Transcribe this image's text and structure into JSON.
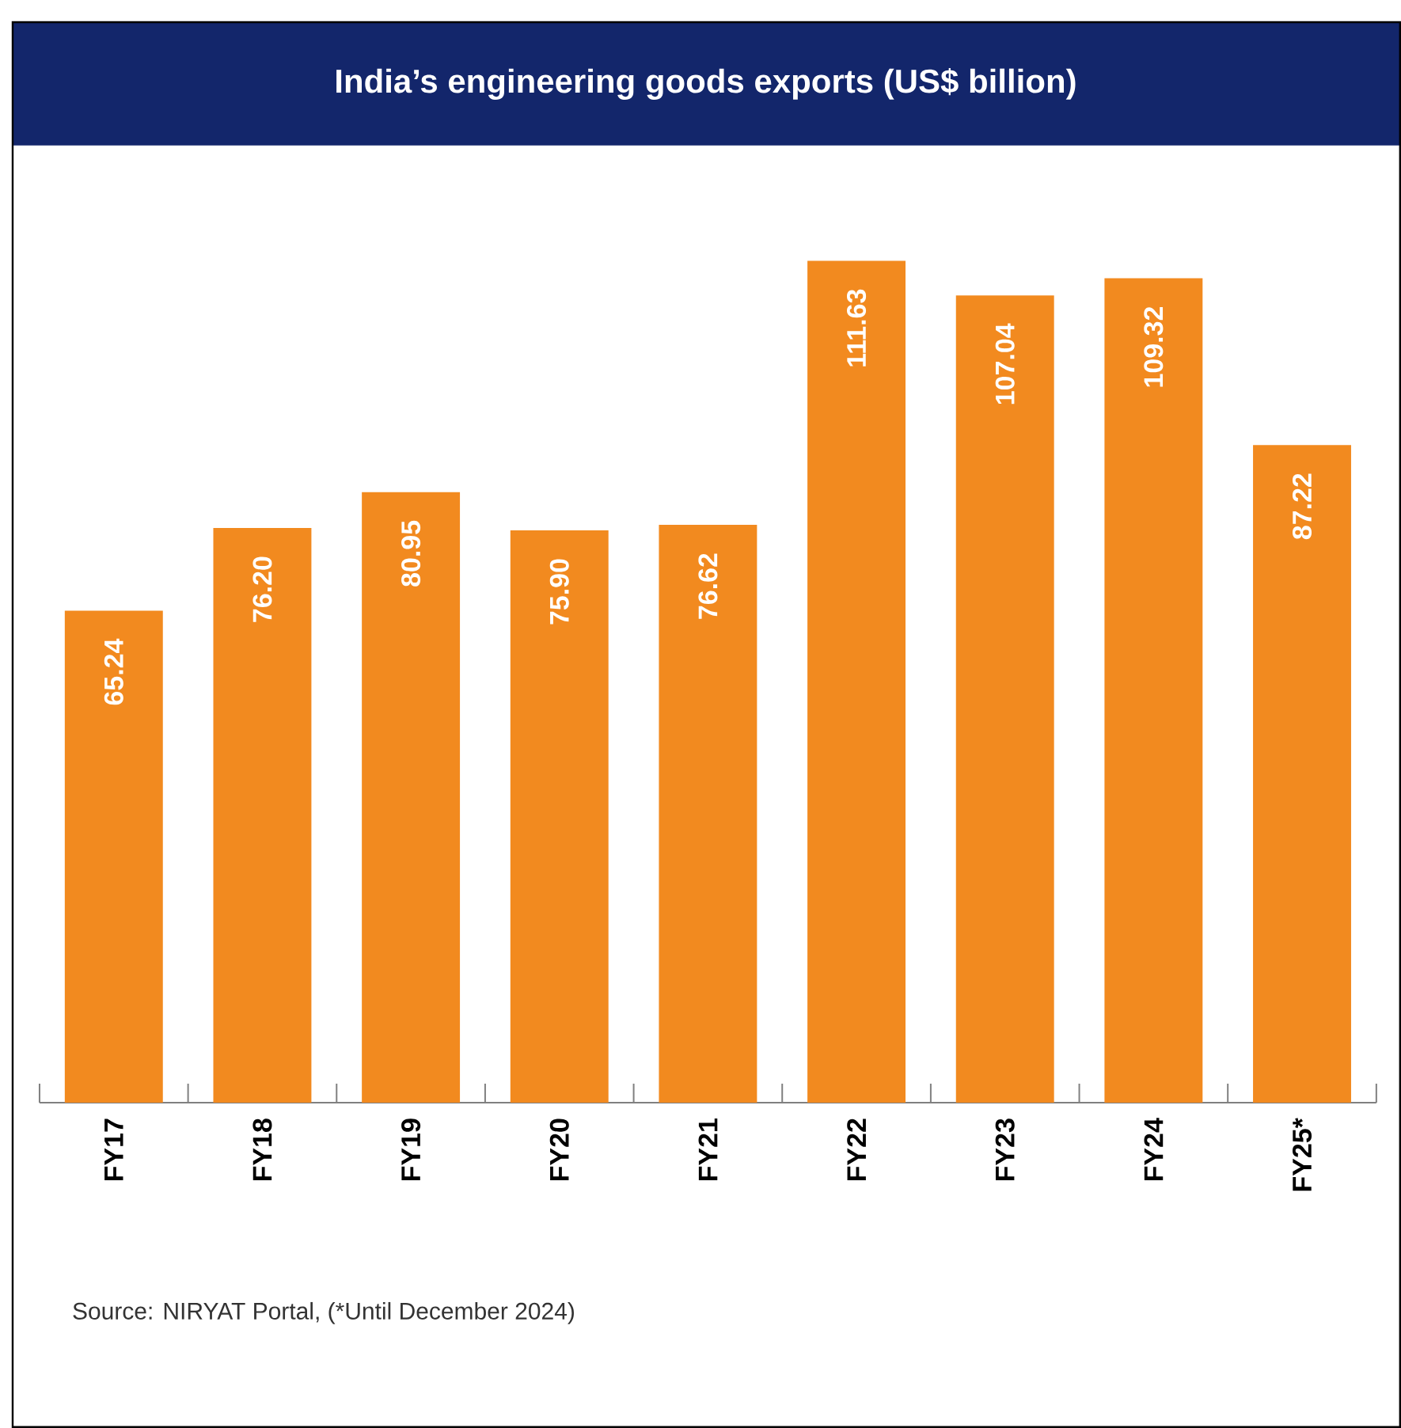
{
  "chart_data": {
    "type": "bar",
    "title": "India’s engineering goods exports (US$ billion)",
    "categories": [
      "FY17",
      "FY18",
      "FY19",
      "FY20",
      "FY21",
      "FY22",
      "FY23",
      "FY24",
      "FY25*"
    ],
    "values": [
      65.24,
      76.2,
      80.95,
      75.9,
      76.62,
      111.63,
      107.04,
      109.32,
      87.22
    ],
    "value_labels": [
      "65.24",
      "76.20",
      "80.95",
      "75.90",
      "76.62",
      "111.63",
      "107.04",
      "109.32",
      "87.22"
    ],
    "color": "#f28a1f",
    "tick_labels": "x",
    "annotations": [
      "Source: NIRYAT Portal, (*Until December 2024)"
    ]
  }
}
